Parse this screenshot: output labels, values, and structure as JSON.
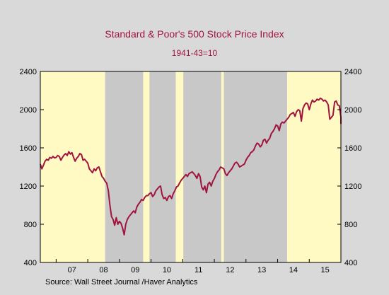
{
  "chart_data": {
    "type": "line",
    "title": "Standard & Poor's 500 Stock Price Index",
    "subtitle": "1941-43=10",
    "source": "Source:  Wall Street Journal /Haver Analytics",
    "xlabel": "",
    "ylabel": "",
    "ylim": [
      400,
      2400
    ],
    "yticks": [
      400,
      800,
      1200,
      1600,
      2000,
      2400
    ],
    "ytick_labels": [
      "400",
      "800",
      "1200",
      "1600",
      "2000",
      "2400"
    ],
    "xlim": [
      2006.5,
      2016.0
    ],
    "xtick_labels": [
      {
        "label": "07",
        "year": 2007
      },
      {
        "label": "08",
        "year": 2008
      },
      {
        "label": "09",
        "year": 2009
      },
      {
        "label": "10",
        "year": 2010
      },
      {
        "label": "11",
        "year": 2011
      },
      {
        "label": "12",
        "year": 2012
      },
      {
        "label": "13",
        "year": 2013
      },
      {
        "label": "14",
        "year": 2014
      },
      {
        "label": "15",
        "year": 2015
      }
    ],
    "grid": false,
    "background_color": "#fff9c4",
    "shaded_color": "#c8c8c8",
    "line_color": "#a0153e",
    "shaded_periods": [
      [
        2008.55,
        2009.75
      ],
      [
        2009.95,
        2010.78
      ],
      [
        2011.02,
        2012.22
      ],
      [
        2012.3,
        2014.3
      ]
    ],
    "series": [
      {
        "values": [
          [
            2006.5,
            1430
          ],
          [
            2006.55,
            1380
          ],
          [
            2006.6,
            1420
          ],
          [
            2006.65,
            1460
          ],
          [
            2006.7,
            1480
          ],
          [
            2006.75,
            1470
          ],
          [
            2006.8,
            1500
          ],
          [
            2006.85,
            1490
          ],
          [
            2006.9,
            1510
          ],
          [
            2006.95,
            1495
          ],
          [
            2007.0,
            1500
          ],
          [
            2007.05,
            1520
          ],
          [
            2007.1,
            1510
          ],
          [
            2007.15,
            1470
          ],
          [
            2007.2,
            1500
          ],
          [
            2007.25,
            1525
          ],
          [
            2007.3,
            1540
          ],
          [
            2007.35,
            1520
          ],
          [
            2007.4,
            1560
          ],
          [
            2007.45,
            1535
          ],
          [
            2007.5,
            1550
          ],
          [
            2007.55,
            1500
          ],
          [
            2007.6,
            1460
          ],
          [
            2007.65,
            1490
          ],
          [
            2007.7,
            1510
          ],
          [
            2007.75,
            1540
          ],
          [
            2007.8,
            1530
          ],
          [
            2007.85,
            1470
          ],
          [
            2007.9,
            1480
          ],
          [
            2007.95,
            1460
          ],
          [
            2008.0,
            1440
          ],
          [
            2008.05,
            1380
          ],
          [
            2008.1,
            1360
          ],
          [
            2008.15,
            1340
          ],
          [
            2008.2,
            1380
          ],
          [
            2008.25,
            1360
          ],
          [
            2008.3,
            1390
          ],
          [
            2008.35,
            1400
          ],
          [
            2008.4,
            1350
          ],
          [
            2008.45,
            1300
          ],
          [
            2008.5,
            1280
          ],
          [
            2008.55,
            1250
          ],
          [
            2008.6,
            1230
          ],
          [
            2008.65,
            1150
          ],
          [
            2008.7,
            1000
          ],
          [
            2008.75,
            880
          ],
          [
            2008.8,
            850
          ],
          [
            2008.85,
            790
          ],
          [
            2008.9,
            870
          ],
          [
            2008.95,
            800
          ],
          [
            2009.0,
            830
          ],
          [
            2009.05,
            810
          ],
          [
            2009.1,
            760
          ],
          [
            2009.15,
            690
          ],
          [
            2009.2,
            800
          ],
          [
            2009.25,
            850
          ],
          [
            2009.3,
            880
          ],
          [
            2009.35,
            900
          ],
          [
            2009.4,
            920
          ],
          [
            2009.45,
            940
          ],
          [
            2009.5,
            920
          ],
          [
            2009.55,
            980
          ],
          [
            2009.6,
            1010
          ],
          [
            2009.65,
            1030
          ],
          [
            2009.7,
            1060
          ],
          [
            2009.75,
            1050
          ],
          [
            2009.8,
            1080
          ],
          [
            2009.85,
            1100
          ],
          [
            2009.9,
            1100
          ],
          [
            2009.95,
            1120
          ],
          [
            2010.0,
            1130
          ],
          [
            2010.05,
            1090
          ],
          [
            2010.1,
            1110
          ],
          [
            2010.15,
            1150
          ],
          [
            2010.2,
            1170
          ],
          [
            2010.25,
            1190
          ],
          [
            2010.3,
            1200
          ],
          [
            2010.35,
            1110
          ],
          [
            2010.4,
            1070
          ],
          [
            2010.45,
            1080
          ],
          [
            2010.5,
            1050
          ],
          [
            2010.55,
            1090
          ],
          [
            2010.6,
            1100
          ],
          [
            2010.65,
            1070
          ],
          [
            2010.7,
            1120
          ],
          [
            2010.75,
            1150
          ],
          [
            2010.8,
            1190
          ],
          [
            2010.85,
            1200
          ],
          [
            2010.9,
            1230
          ],
          [
            2010.95,
            1260
          ],
          [
            2011.0,
            1280
          ],
          [
            2011.05,
            1300
          ],
          [
            2011.1,
            1320
          ],
          [
            2011.15,
            1300
          ],
          [
            2011.2,
            1330
          ],
          [
            2011.25,
            1340
          ],
          [
            2011.3,
            1350
          ],
          [
            2011.35,
            1330
          ],
          [
            2011.4,
            1310
          ],
          [
            2011.45,
            1280
          ],
          [
            2011.5,
            1330
          ],
          [
            2011.55,
            1300
          ],
          [
            2011.6,
            1190
          ],
          [
            2011.65,
            1160
          ],
          [
            2011.7,
            1200
          ],
          [
            2011.75,
            1130
          ],
          [
            2011.8,
            1220
          ],
          [
            2011.85,
            1240
          ],
          [
            2011.9,
            1200
          ],
          [
            2011.95,
            1250
          ],
          [
            2012.0,
            1280
          ],
          [
            2012.05,
            1320
          ],
          [
            2012.1,
            1350
          ],
          [
            2012.15,
            1370
          ],
          [
            2012.2,
            1400
          ],
          [
            2012.25,
            1390
          ],
          [
            2012.3,
            1380
          ],
          [
            2012.35,
            1330
          ],
          [
            2012.4,
            1310
          ],
          [
            2012.45,
            1340
          ],
          [
            2012.5,
            1360
          ],
          [
            2012.55,
            1380
          ],
          [
            2012.6,
            1410
          ],
          [
            2012.65,
            1440
          ],
          [
            2012.7,
            1450
          ],
          [
            2012.75,
            1430
          ],
          [
            2012.8,
            1400
          ],
          [
            2012.85,
            1410
          ],
          [
            2012.9,
            1420
          ],
          [
            2012.95,
            1430
          ],
          [
            2013.0,
            1470
          ],
          [
            2013.05,
            1500
          ],
          [
            2013.1,
            1520
          ],
          [
            2013.15,
            1550
          ],
          [
            2013.2,
            1560
          ],
          [
            2013.25,
            1580
          ],
          [
            2013.3,
            1620
          ],
          [
            2013.35,
            1650
          ],
          [
            2013.4,
            1640
          ],
          [
            2013.45,
            1610
          ],
          [
            2013.5,
            1630
          ],
          [
            2013.55,
            1680
          ],
          [
            2013.6,
            1690
          ],
          [
            2013.65,
            1650
          ],
          [
            2013.7,
            1680
          ],
          [
            2013.75,
            1700
          ],
          [
            2013.8,
            1750
          ],
          [
            2013.85,
            1770
          ],
          [
            2013.9,
            1800
          ],
          [
            2013.95,
            1840
          ],
          [
            2014.0,
            1830
          ],
          [
            2014.05,
            1780
          ],
          [
            2014.1,
            1850
          ],
          [
            2014.15,
            1870
          ],
          [
            2014.2,
            1860
          ],
          [
            2014.25,
            1880
          ],
          [
            2014.3,
            1900
          ],
          [
            2014.35,
            1920
          ],
          [
            2014.4,
            1950
          ],
          [
            2014.45,
            1960
          ],
          [
            2014.5,
            1970
          ],
          [
            2014.55,
            1930
          ],
          [
            2014.6,
            1980
          ],
          [
            2014.65,
            2000
          ],
          [
            2014.7,
            1990
          ],
          [
            2014.75,
            1880
          ],
          [
            2014.8,
            2010
          ],
          [
            2014.85,
            2050
          ],
          [
            2014.9,
            2070
          ],
          [
            2014.95,
            2060
          ],
          [
            2015.0,
            2000
          ],
          [
            2015.05,
            2060
          ],
          [
            2015.1,
            2100
          ],
          [
            2015.15,
            2080
          ],
          [
            2015.2,
            2090
          ],
          [
            2015.25,
            2110
          ],
          [
            2015.3,
            2100
          ],
          [
            2015.35,
            2120
          ],
          [
            2015.4,
            2110
          ],
          [
            2015.45,
            2090
          ],
          [
            2015.5,
            2100
          ],
          [
            2015.55,
            2080
          ],
          [
            2015.6,
            2050
          ],
          [
            2015.65,
            1900
          ],
          [
            2015.7,
            1920
          ],
          [
            2015.75,
            1940
          ],
          [
            2015.8,
            2080
          ],
          [
            2015.85,
            2090
          ],
          [
            2015.9,
            2050
          ],
          [
            2015.95,
            2040
          ],
          [
            2016.0,
            1920
          ],
          [
            2016.05,
            1860
          ],
          [
            2016.08,
            1850
          ]
        ]
      }
    ]
  }
}
